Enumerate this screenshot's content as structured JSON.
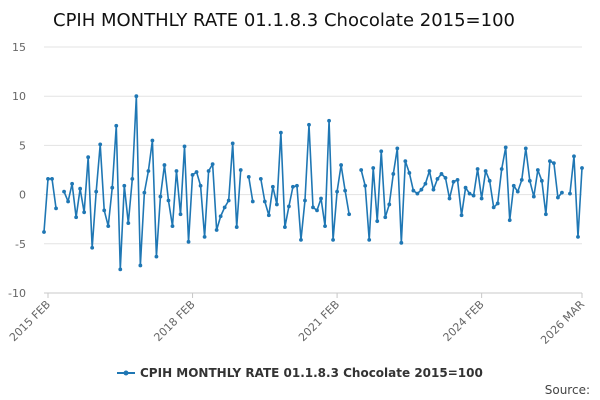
{
  "chart_data": {
    "type": "line",
    "title": "CPIH MONTHLY RATE 01.1.8.3 Chocolate 2015=100",
    "xlabel": "",
    "ylabel": "",
    "ylim": [
      -10,
      15
    ],
    "yticks": [
      -10,
      -5,
      0,
      5,
      10,
      15
    ],
    "x_tick_labels": [
      "2015 FEB",
      "2018 FEB",
      "2021 FEB",
      "2024 FEB",
      "2026 MAR"
    ],
    "x_start": "2015 JAN",
    "x_end": "2026 MAR",
    "legend_position": "bottom",
    "color": "#1f77b4",
    "series": [
      {
        "name": "CPIH MONTHLY RATE 01.1.8.3 Chocolate 2015=100",
        "values": [
          -3.8,
          1.6,
          1.6,
          -1.4,
          null,
          0.3,
          -0.7,
          1.1,
          -2.3,
          0.6,
          -1.8,
          3.8,
          -5.4,
          0.3,
          5.1,
          -1.6,
          -3.2,
          0.7,
          7.0,
          -7.6,
          0.9,
          -2.9,
          1.6,
          10.0,
          -7.2,
          0.2,
          2.4,
          5.5,
          -6.3,
          -0.2,
          3.0,
          -0.6,
          -3.2,
          2.4,
          -2.0,
          4.9,
          -4.8,
          2.0,
          2.3,
          0.9,
          -4.3,
          2.4,
          3.1,
          -3.6,
          -2.2,
          -1.3,
          -0.6,
          5.2,
          -3.3,
          2.5,
          null,
          1.8,
          -0.7,
          null,
          1.6,
          -0.7,
          -2.1,
          0.8,
          -1.0,
          6.3,
          -3.3,
          -1.2,
          0.8,
          0.9,
          -4.6,
          -0.6,
          7.1,
          -1.3,
          -1.6,
          -0.4,
          -3.2,
          7.5,
          -4.6,
          0.3,
          3.0,
          0.4,
          -2.0,
          null,
          null,
          2.5,
          0.9,
          -4.6,
          2.7,
          -2.7,
          4.4,
          -2.3,
          -1.0,
          2.1,
          4.7,
          -4.9,
          3.4,
          2.2,
          0.4,
          0.1,
          0.5,
          1.1,
          2.4,
          0.5,
          1.6,
          2.1,
          1.7,
          -0.4,
          1.3,
          1.5,
          -2.1,
          0.7,
          0.1,
          -0.1,
          2.6,
          -0.4,
          2.4,
          1.4,
          -1.3,
          -0.9,
          2.6,
          4.8,
          -2.6,
          0.9,
          0.3,
          1.5,
          4.7,
          1.4,
          -0.2,
          2.5,
          1.4,
          -2.0,
          3.4,
          3.2,
          -0.3,
          0.2,
          null,
          0.1,
          3.9,
          -4.3,
          2.7
        ]
      }
    ]
  },
  "footer": {
    "source_label": "Source:"
  }
}
